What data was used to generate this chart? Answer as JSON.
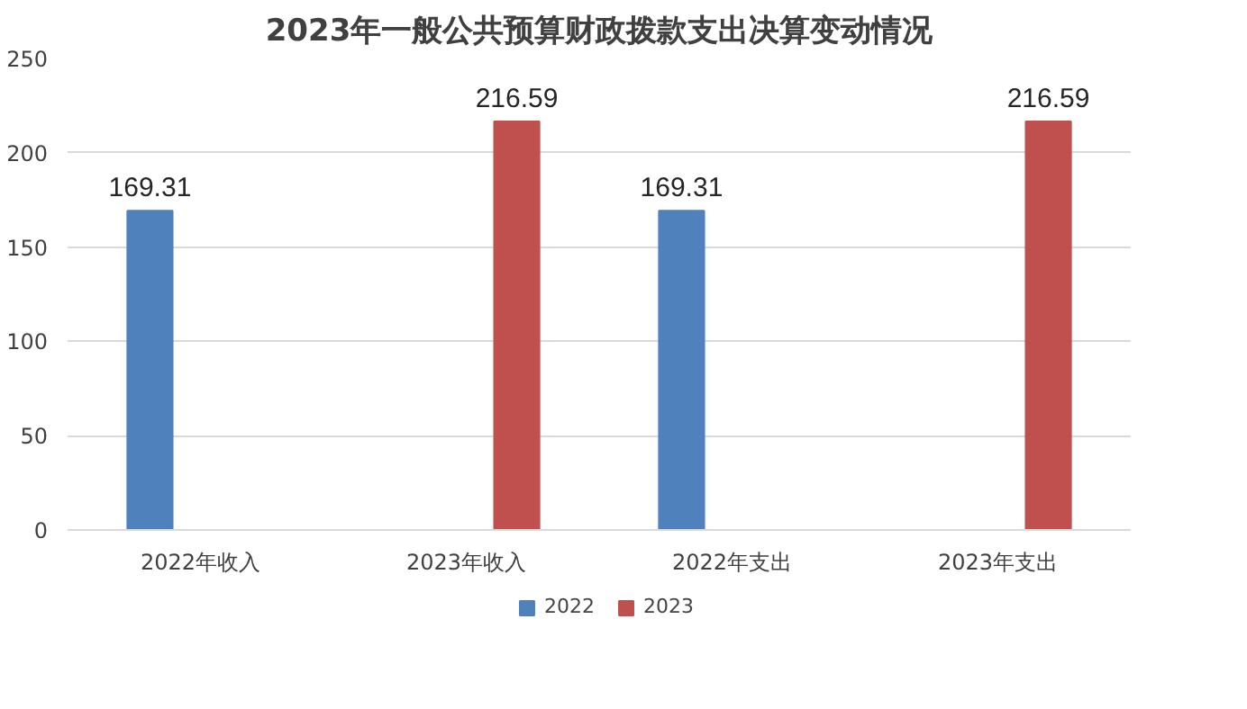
{
  "chart_data": {
    "type": "bar",
    "title": "2023年一般公共预算财政拨款支出决算变动情况",
    "categories": [
      "2022年收入",
      "2023年收入",
      "2022年支出",
      "2023年支出"
    ],
    "series": [
      {
        "name": "2022",
        "color": "#4f81bd",
        "values": [
          169.31,
          null,
          169.31,
          null
        ]
      },
      {
        "name": "2023",
        "color": "#c0504d",
        "values": [
          null,
          216.59,
          null,
          216.59
        ]
      }
    ],
    "ylim": [
      0,
      250
    ],
    "yticks": [
      0,
      50,
      100,
      150,
      200,
      250
    ],
    "grid": "y",
    "legend": "bottom",
    "data_labels": true
  }
}
